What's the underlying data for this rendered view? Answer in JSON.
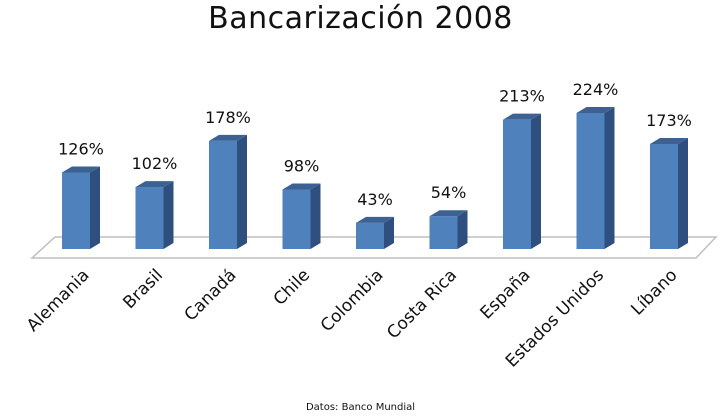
{
  "chart_data": {
    "type": "bar",
    "title": "Bancarización 2008",
    "categories": [
      "Alemania",
      "Brasil",
      "Canadá",
      "Chile",
      "Colombia",
      "Costa Rica",
      "España",
      "Estados Unidos",
      "Líbano"
    ],
    "values": [
      126,
      102,
      178,
      98,
      43,
      54,
      213,
      224,
      173
    ],
    "data_labels": [
      "126%",
      "102%",
      "178%",
      "98%",
      "43%",
      "54%",
      "213%",
      "224%",
      "173%"
    ],
    "xlabel": "",
    "ylabel": "",
    "ylim": [
      0,
      240
    ],
    "grid": false,
    "legend": "none",
    "style": "3d-column",
    "source": "Datos: Banco Mundial",
    "colors": {
      "bar_front": "#4f81bd",
      "bar_side": "#2f4f7f",
      "bar_top": "#3c6294",
      "floor_stroke": "#bfbfbf",
      "text": "#111111"
    }
  }
}
